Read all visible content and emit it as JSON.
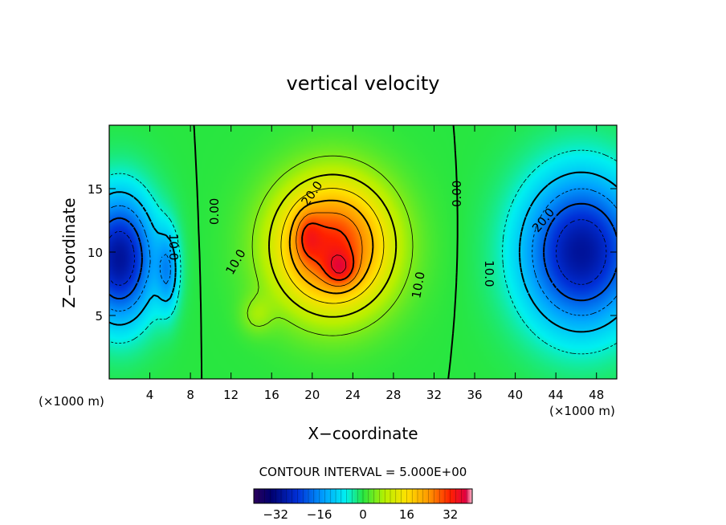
{
  "chart_data": {
    "type": "heatmap",
    "title": "vertical velocity",
    "xlabel": "X−coordinate",
    "ylabel": "Z−coordinate",
    "x_unit_left": "(×1000 m)",
    "x_unit_right": "(×1000 m)",
    "xlim": [
      0,
      50
    ],
    "ylim": [
      0,
      20
    ],
    "x_ticks": [
      4,
      8,
      12,
      16,
      20,
      24,
      28,
      32,
      36,
      40,
      44,
      48
    ],
    "y_ticks": [
      5,
      10,
      15
    ],
    "contour_interval_text": "CONTOUR INTERVAL = 5.000E+00",
    "colorbar": {
      "min": -40,
      "max": 40,
      "ticks": [
        -32,
        -16,
        0,
        16,
        32
      ],
      "tick_labels": [
        "−32",
        "−16",
        "0",
        "16",
        "32"
      ]
    },
    "contour_labels": [
      {
        "text": "20.0",
        "x": 20.0,
        "y": 14.6,
        "angle": -55
      },
      {
        "text": "10.0",
        "x": 12.5,
        "y": 9.2,
        "angle": -60
      },
      {
        "text": "10.0",
        "x": 30.5,
        "y": 7.4,
        "angle": -80
      },
      {
        "text": "0.00",
        "x": 10.4,
        "y": 13.2,
        "angle": -90
      },
      {
        "text": "0.00",
        "x": 34.3,
        "y": 14.6,
        "angle": -90
      },
      {
        "text": "10.0",
        "x": 6.3,
        "y": 10.4,
        "angle": 90
      },
      {
        "text": "10.0",
        "x": 37.4,
        "y": 8.3,
        "angle": 90
      },
      {
        "text": "20.0",
        "x": 42.8,
        "y": 12.5,
        "angle": -50
      }
    ],
    "features": [
      {
        "name": "updraft-core-1",
        "x": 19.5,
        "y": 11.2,
        "value": 36
      },
      {
        "name": "updraft-core-2",
        "x": 22.8,
        "y": 8.6,
        "value": 37
      },
      {
        "name": "downdraft-left",
        "x": 1.0,
        "y": 9.5,
        "value": -32
      },
      {
        "name": "downdraft-right",
        "x": 46.5,
        "y": 10.0,
        "value": -30
      }
    ]
  }
}
